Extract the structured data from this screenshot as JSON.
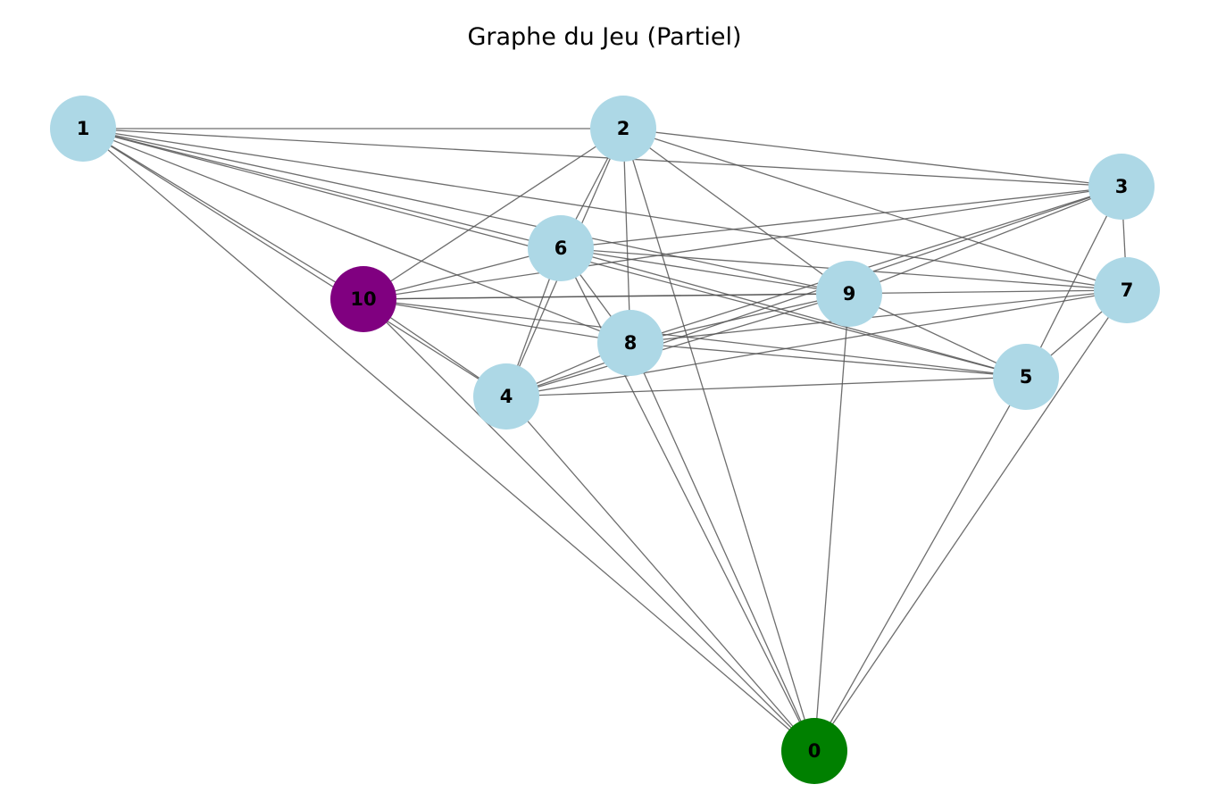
{
  "title": "Graphe du Jeu (Partiel)",
  "colors": {
    "default_node": "#add8e6",
    "start_node": "#008000",
    "goal_node": "#800080",
    "edge": "#555555"
  },
  "nodes": [
    {
      "id": "0",
      "label": "0",
      "color": "#008000"
    },
    {
      "id": "1",
      "label": "1",
      "color": "#add8e6"
    },
    {
      "id": "2",
      "label": "2",
      "color": "#add8e6"
    },
    {
      "id": "3",
      "label": "3",
      "color": "#add8e6"
    },
    {
      "id": "4",
      "label": "4",
      "color": "#add8e6"
    },
    {
      "id": "5",
      "label": "5",
      "color": "#add8e6"
    },
    {
      "id": "6",
      "label": "6",
      "color": "#add8e6"
    },
    {
      "id": "7",
      "label": "7",
      "color": "#add8e6"
    },
    {
      "id": "8",
      "label": "8",
      "color": "#add8e6"
    },
    {
      "id": "9",
      "label": "9",
      "color": "#add8e6"
    },
    {
      "id": "10",
      "label": "10",
      "color": "#800080"
    }
  ],
  "edges": [
    [
      "1",
      "2"
    ],
    [
      "1",
      "3"
    ],
    [
      "1",
      "6"
    ],
    [
      "1",
      "7"
    ],
    [
      "1",
      "9"
    ],
    [
      "1",
      "5"
    ],
    [
      "1",
      "8"
    ],
    [
      "1",
      "10"
    ],
    [
      "1",
      "4"
    ],
    [
      "1",
      "0"
    ],
    [
      "2",
      "3"
    ],
    [
      "2",
      "6"
    ],
    [
      "2",
      "10"
    ],
    [
      "2",
      "8"
    ],
    [
      "2",
      "9"
    ],
    [
      "2",
      "7"
    ],
    [
      "2",
      "4"
    ],
    [
      "2",
      "0"
    ],
    [
      "3",
      "6"
    ],
    [
      "3",
      "10"
    ],
    [
      "3",
      "9"
    ],
    [
      "3",
      "8"
    ],
    [
      "3",
      "7"
    ],
    [
      "3",
      "5"
    ],
    [
      "3",
      "4"
    ],
    [
      "6",
      "10"
    ],
    [
      "6",
      "9"
    ],
    [
      "6",
      "7"
    ],
    [
      "6",
      "5"
    ],
    [
      "6",
      "8"
    ],
    [
      "6",
      "4"
    ],
    [
      "6",
      "0"
    ],
    [
      "10",
      "9"
    ],
    [
      "10",
      "7"
    ],
    [
      "10",
      "8"
    ],
    [
      "10",
      "5"
    ],
    [
      "10",
      "4"
    ],
    [
      "10",
      "0"
    ],
    [
      "9",
      "8"
    ],
    [
      "9",
      "4"
    ],
    [
      "9",
      "5"
    ],
    [
      "9",
      "0"
    ],
    [
      "7",
      "8"
    ],
    [
      "7",
      "4"
    ],
    [
      "7",
      "5"
    ],
    [
      "7",
      "0"
    ],
    [
      "8",
      "5"
    ],
    [
      "8",
      "4"
    ],
    [
      "8",
      "0"
    ],
    [
      "4",
      "5"
    ],
    [
      "4",
      "0"
    ],
    [
      "5",
      "0"
    ]
  ]
}
